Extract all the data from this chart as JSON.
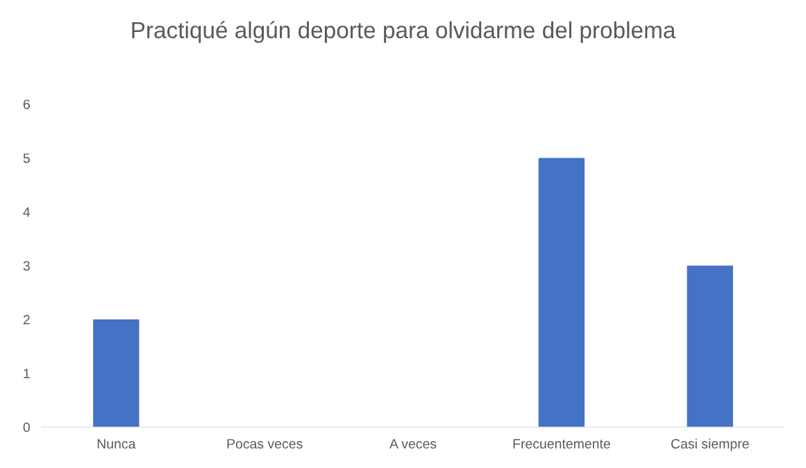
{
  "chart_data": {
    "type": "bar",
    "title": "Practiqué algún deporte para olvidarme del problema",
    "categories": [
      "Nunca",
      "Pocas veces",
      "A veces",
      "Frecuentemente",
      "Casi siempre"
    ],
    "values": [
      2,
      0,
      0,
      5,
      3
    ],
    "color": "#4472c4",
    "ylim": [
      0,
      6
    ],
    "yticks": [
      0,
      1,
      2,
      3,
      4,
      5,
      6
    ],
    "grid": false,
    "legend": false
  }
}
